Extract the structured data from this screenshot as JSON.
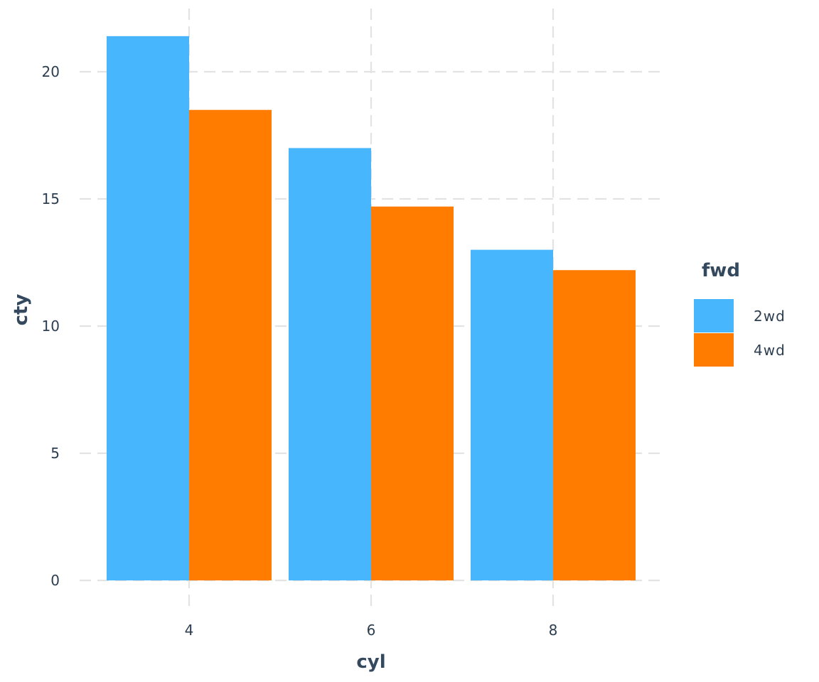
{
  "chart_data": {
    "type": "bar",
    "xlabel": "cyl",
    "ylabel": "cty",
    "categories": [
      "4",
      "6",
      "8"
    ],
    "series": [
      {
        "name": "2wd",
        "color": "#48b6fc",
        "values": [
          21.4,
          17.0,
          13.0
        ]
      },
      {
        "name": "4wd",
        "color": "#ff7c00",
        "values": [
          18.5,
          14.7,
          12.2
        ]
      }
    ],
    "ylim": [
      0,
      22
    ],
    "yticks": [
      "0",
      "5",
      "10",
      "15",
      "20"
    ],
    "grid": true,
    "legend": {
      "title": "fwd",
      "position": "right"
    }
  }
}
